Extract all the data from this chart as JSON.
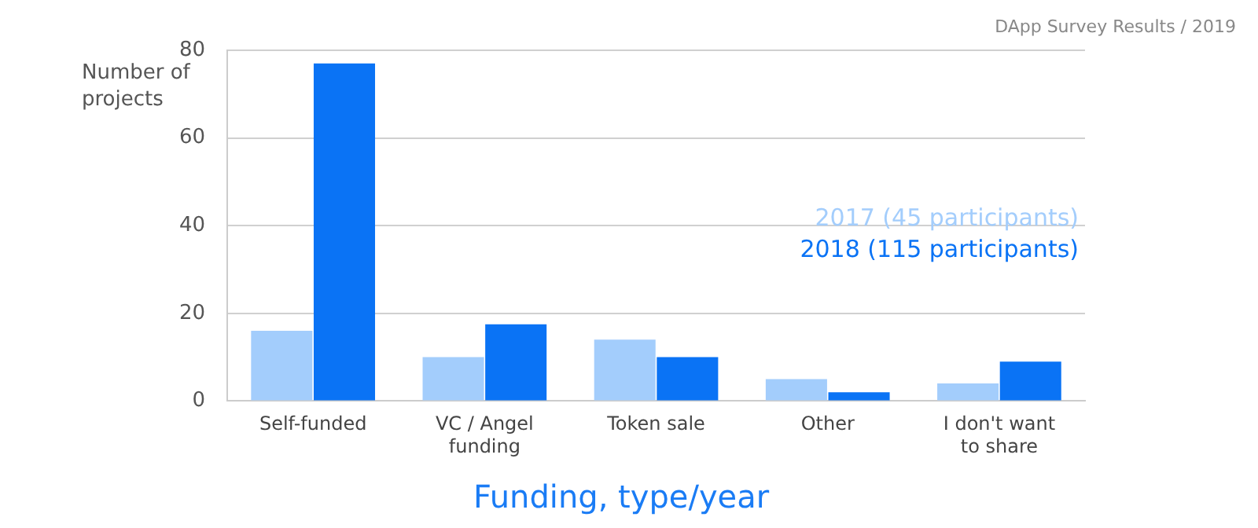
{
  "chart_data": {
    "type": "bar",
    "title": "Funding, type/year",
    "ylabel": "Number of projects",
    "annotations": [
      "DApp Survey Results / 2019"
    ],
    "categories": [
      "Self-funded",
      "VC / Angel funding",
      "Token sale",
      "Other",
      "I don't want to share"
    ],
    "series": [
      {
        "name": "2017 (45 participants)",
        "color": "#a3cdfc",
        "values": [
          16,
          10,
          14,
          5,
          4
        ]
      },
      {
        "name": "2018 (115 participants)",
        "color": "#0a73f5",
        "values": [
          77,
          17.5,
          10,
          2,
          9
        ]
      }
    ],
    "ylim": [
      0,
      80
    ],
    "yticks": [
      0,
      20,
      40,
      60,
      80
    ],
    "grid": "y",
    "legend": "right"
  }
}
